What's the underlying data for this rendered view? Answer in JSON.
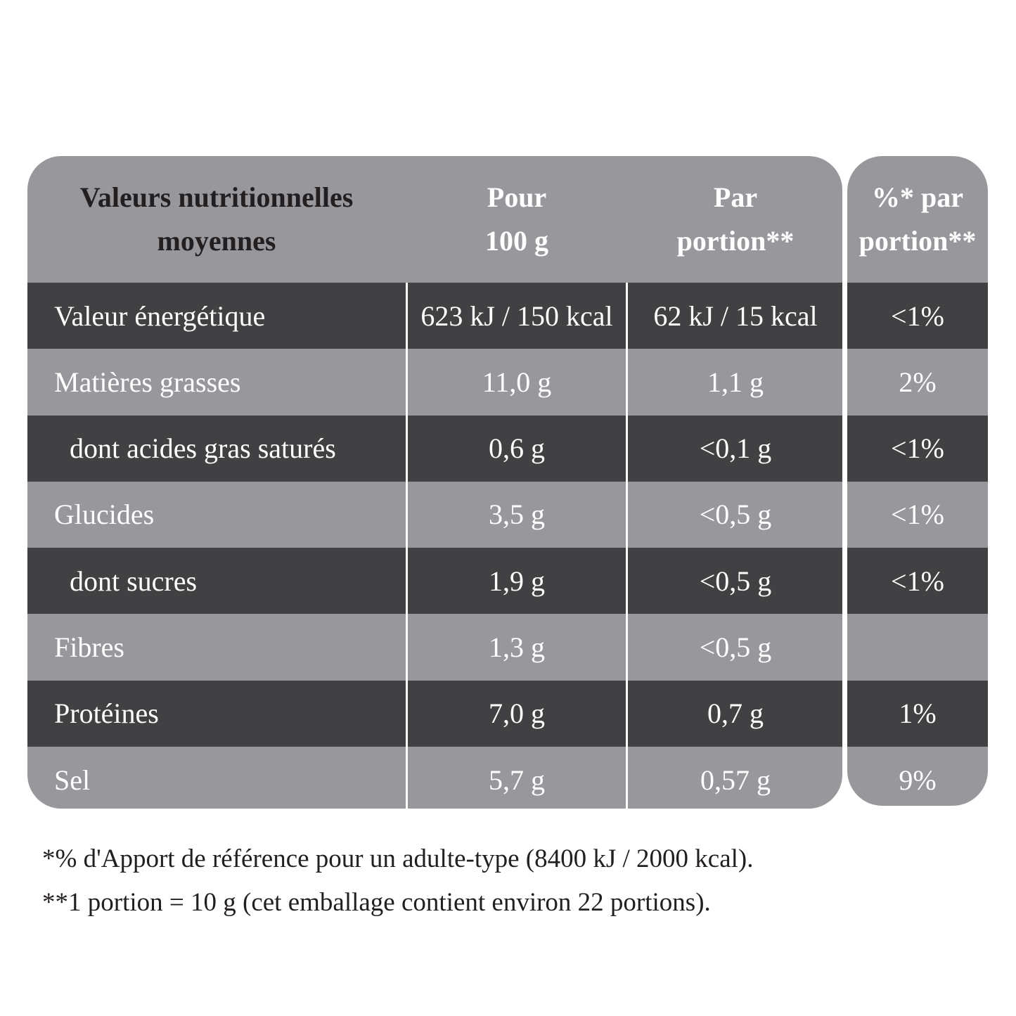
{
  "header": {
    "col0": [
      "Valeurs nutritionnelles",
      "moyennes"
    ],
    "col1": [
      "Pour",
      "100 g"
    ],
    "col2": [
      "Par",
      "portion**"
    ],
    "col3": [
      "%* par",
      "portion**"
    ]
  },
  "rows": [
    {
      "label": "Valeur énergétique",
      "per100": "623 kJ / 150 kcal",
      "perPortion": "62 kJ / 15 kcal",
      "pct": "<1%",
      "indent": false
    },
    {
      "label": "Matières grasses",
      "per100": "11,0 g",
      "perPortion": "1,1 g",
      "pct": "2%",
      "indent": false
    },
    {
      "label": "dont acides gras saturés",
      "per100": "0,6 g",
      "perPortion": "<0,1 g",
      "pct": "<1%",
      "indent": true
    },
    {
      "label": "Glucides",
      "per100": "3,5 g",
      "perPortion": "<0,5 g",
      "pct": "<1%",
      "indent": false
    },
    {
      "label": "dont sucres",
      "per100": "1,9 g",
      "perPortion": "<0,5 g",
      "pct": "<1%",
      "indent": true
    },
    {
      "label": "Fibres",
      "per100": "1,3 g",
      "perPortion": "<0,5 g",
      "pct": "",
      "indent": false
    },
    {
      "label": "Protéines",
      "per100": "7,0 g",
      "perPortion": "0,7 g",
      "pct": "1%",
      "indent": false
    },
    {
      "label": "Sel",
      "per100": "5,7 g",
      "perPortion": "0,57 g",
      "pct": "9%",
      "indent": false
    }
  ],
  "footnotes": [
    "*% d'Apport de référence pour un adulte-type (8400 kJ / 2000 kcal).",
    "**1 portion = 10 g (cet emballage contient environ 22 portions)."
  ],
  "colors": {
    "header": "#98979c",
    "dark_row": "#414042",
    "light_row": "#98979c"
  }
}
